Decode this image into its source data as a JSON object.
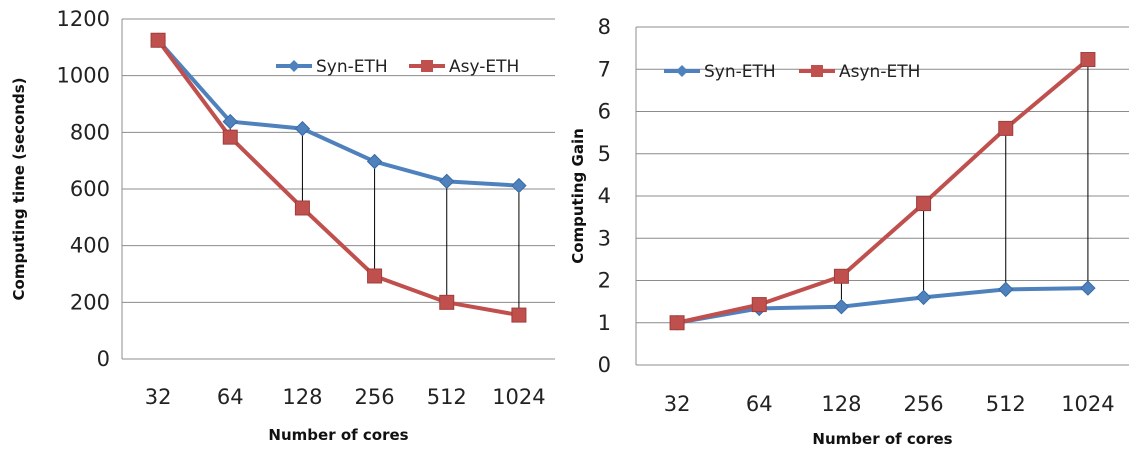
{
  "chart_data": [
    {
      "type": "line",
      "title": "",
      "xlabel": "Number of cores",
      "ylabel": "Computing time (seconds)",
      "categories": [
        "32",
        "64",
        "128",
        "256",
        "512",
        "1024"
      ],
      "ylim": [
        0,
        1200
      ],
      "yticks": [
        "0",
        "200",
        "400",
        "600",
        "800",
        "1000",
        "1200"
      ],
      "grid": "horizontal",
      "legend": "top-right",
      "drop_lines": true,
      "series": [
        {
          "name": "Syn-ETH",
          "marker": "diamond",
          "color": "#4F81BD",
          "values": [
            1125,
            838,
            813,
            697,
            627,
            612
          ]
        },
        {
          "name": "Asy-ETH",
          "marker": "square",
          "color": "#C0504D",
          "values": [
            1125,
            783,
            533,
            293,
            200,
            155
          ]
        }
      ]
    },
    {
      "type": "line",
      "title": "",
      "xlabel": "Number of cores",
      "ylabel": "Computing Gain",
      "categories": [
        "32",
        "64",
        "128",
        "256",
        "512",
        "1024"
      ],
      "ylim": [
        0,
        8
      ],
      "yticks": [
        "0",
        "1",
        "2",
        "3",
        "4",
        "5",
        "6",
        "7",
        "8"
      ],
      "grid": "horizontal",
      "legend": "top-left",
      "drop_lines": true,
      "series": [
        {
          "name": "Syn-ETH",
          "marker": "diamond",
          "color": "#4F81BD",
          "values": [
            1.0,
            1.34,
            1.38,
            1.6,
            1.79,
            1.82
          ]
        },
        {
          "name": "Asyn-ETH",
          "marker": "square",
          "color": "#C0504D",
          "values": [
            1.0,
            1.43,
            2.1,
            3.82,
            5.6,
            7.23
          ]
        }
      ]
    }
  ]
}
